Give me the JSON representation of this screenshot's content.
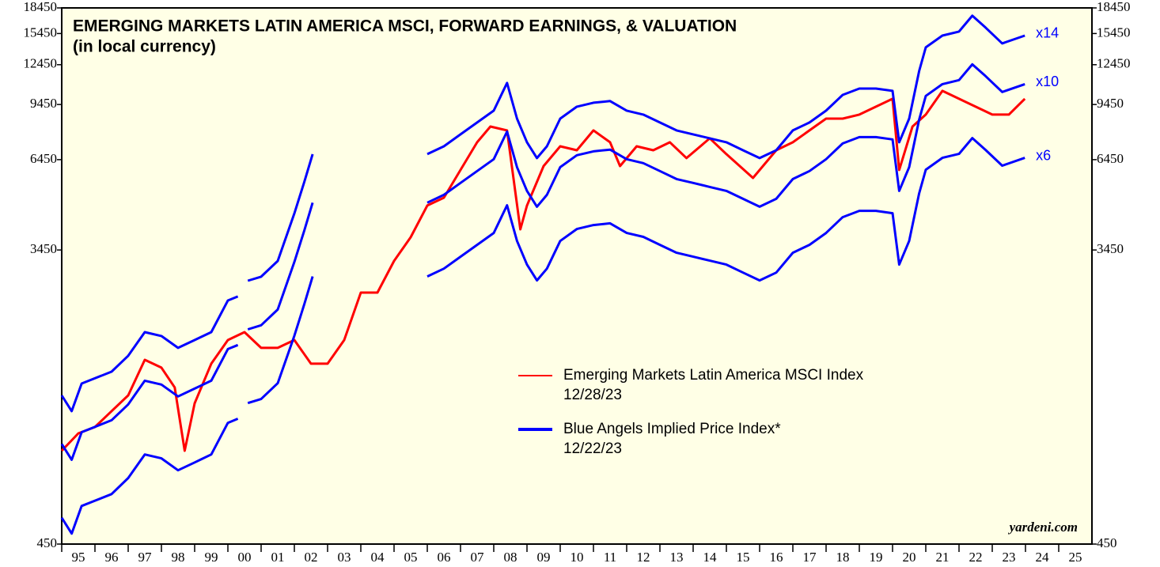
{
  "chart_data": {
    "type": "line",
    "title": "EMERGING MARKETS LATIN AMERICA MSCI, FORWARD EARNINGS, & VALUATION",
    "subtitle": "(in local currency)",
    "source": "yardeni.com",
    "log_scale": true,
    "ylim": [
      450,
      18450
    ],
    "yticks": [
      450,
      3450,
      6450,
      9450,
      12450,
      15450,
      18450
    ],
    "xlim": [
      1995,
      2026
    ],
    "xticks": [
      {
        "value": 1995.5,
        "label": "95"
      },
      {
        "value": 1996.5,
        "label": "96"
      },
      {
        "value": 1997.5,
        "label": "97"
      },
      {
        "value": 1998.5,
        "label": "98"
      },
      {
        "value": 1999.5,
        "label": "99"
      },
      {
        "value": 2000.5,
        "label": "00"
      },
      {
        "value": 2001.5,
        "label": "01"
      },
      {
        "value": 2002.5,
        "label": "02"
      },
      {
        "value": 2003.5,
        "label": "03"
      },
      {
        "value": 2004.5,
        "label": "04"
      },
      {
        "value": 2005.5,
        "label": "05"
      },
      {
        "value": 2006.5,
        "label": "06"
      },
      {
        "value": 2007.5,
        "label": "07"
      },
      {
        "value": 2008.5,
        "label": "08"
      },
      {
        "value": 2009.5,
        "label": "09"
      },
      {
        "value": 2010.5,
        "label": "10"
      },
      {
        "value": 2011.5,
        "label": "11"
      },
      {
        "value": 2012.5,
        "label": "12"
      },
      {
        "value": 2013.5,
        "label": "13"
      },
      {
        "value": 2014.5,
        "label": "14"
      },
      {
        "value": 2015.5,
        "label": "15"
      },
      {
        "value": 2016.5,
        "label": "16"
      },
      {
        "value": 2017.5,
        "label": "17"
      },
      {
        "value": 2018.5,
        "label": "18"
      },
      {
        "value": 2019.5,
        "label": "19"
      },
      {
        "value": 2020.5,
        "label": "20"
      },
      {
        "value": 2021.5,
        "label": "21"
      },
      {
        "value": 2022.5,
        "label": "22"
      },
      {
        "value": 2023.5,
        "label": "23"
      },
      {
        "value": 2024.5,
        "label": "24"
      },
      {
        "value": 2025.5,
        "label": "25"
      }
    ],
    "legend": [
      {
        "label": "Emerging Markets Latin America MSCI Index",
        "date": "12/28/23",
        "color": "#ff0000"
      },
      {
        "label": "Blue Angels Implied Price Index*",
        "date": "12/22/23",
        "color": "#0000ff"
      }
    ],
    "series": [
      {
        "color": "#ff0000",
        "x": [
          1995.0,
          1995.5,
          1996.0,
          1996.5,
          1997.0,
          1997.5,
          1998.0,
          1998.4,
          1998.7,
          1999.0,
          1999.5,
          2000.0,
          2000.5,
          2001.0,
          2001.5,
          2002.0,
          2002.5,
          2003.0,
          2003.5,
          2004.0,
          2004.5,
          2005.0,
          2005.5,
          2006.0,
          2006.5,
          2007.0,
          2007.5,
          2007.9,
          2008.4,
          2008.8,
          2009.0,
          2009.5,
          2010.0,
          2010.5,
          2011.0,
          2011.5,
          2011.8,
          2012.3,
          2012.8,
          2013.3,
          2013.8,
          2014.5,
          2015.0,
          2015.8,
          2016.5,
          2017.0,
          2017.5,
          2018.0,
          2018.5,
          2019.0,
          2019.5,
          2020.0,
          2020.2,
          2020.6,
          2021.0,
          2021.5,
          2022.0,
          2022.5,
          2023.0,
          2023.5,
          2023.98
        ],
        "values": [
          859,
          969,
          1012,
          1130,
          1260,
          1612,
          1527,
          1332,
          859,
          1193,
          1570,
          1849,
          1953,
          1751,
          1751,
          1849,
          1570,
          1570,
          1849,
          2569,
          2569,
          3198,
          3768,
          4694,
          4955,
          6005,
          7275,
          8115,
          7897,
          3981,
          4694,
          6170,
          7075,
          6884,
          7897,
          7275,
          6170,
          7075,
          6884,
          7275,
          6519,
          7476,
          6702,
          5684,
          6884,
          7275,
          7897,
          8571,
          8571,
          8815,
          9308,
          9832,
          6005,
          8115,
          8815,
          10386,
          9832,
          9308,
          8815,
          8815,
          9832
        ]
      },
      {
        "name": "x14",
        "color": "#0000ff",
        "x": [
          1995.0,
          1995.3,
          1995.6,
          1996.5,
          1997.0,
          1997.5,
          1998.0,
          1998.5,
          1999.0,
          1999.5,
          2000.0,
          2000.3,
          2000.4,
          2000.6,
          2001.0,
          2001.5,
          2002.0,
          2002.3,
          2002.55,
          2004,
          2006.0,
          2006.5,
          2007.0,
          2007.5,
          2008.0,
          2008.4,
          2008.7,
          2009.0,
          2009.3,
          2009.6,
          2010.0,
          2010.5,
          2011.0,
          2011.5,
          2012.0,
          2012.5,
          2013.0,
          2013.5,
          2014.0,
          2014.5,
          2015.0,
          2015.5,
          2016.0,
          2016.5,
          2017.0,
          2017.5,
          2018.0,
          2018.5,
          2019.0,
          2019.5,
          2020.0,
          2020.2,
          2020.5,
          2020.8,
          2021.0,
          2021.5,
          2022.0,
          2022.4,
          2022.8,
          2023.3,
          2023.98
        ],
        "values": [
          1260,
          1130,
          1368,
          1485,
          1658,
          1953,
          1901,
          1751,
          1849,
          1953,
          2432,
          2500,
          null,
          2788,
          2867,
          3198,
          4443,
          5531,
          6702,
          null,
          6702,
          7075,
          7686,
          8342,
          9057,
          10969,
          8571,
          7275,
          6519,
          7075,
          8571,
          9308,
          9565,
          9680,
          9057,
          8815,
          8342,
          7897,
          7686,
          7476,
          7275,
          6884,
          6519,
          6884,
          7897,
          8342,
          9057,
          10102,
          10555,
          10555,
          10386,
          7275,
          8571,
          11911,
          14037,
          15235,
          15666,
          17474,
          16100,
          14430,
          15235
        ]
      },
      {
        "name": "x10",
        "color": "#0000ff",
        "x": [
          1995.0,
          1995.3,
          1995.6,
          1996.5,
          1997.0,
          1997.5,
          1998.0,
          1998.5,
          1999.0,
          1999.5,
          2000.0,
          2000.3,
          2000.4,
          2000.6,
          2001.0,
          2001.5,
          2002.0,
          2002.3,
          2002.55,
          2004,
          2006.0,
          2006.5,
          2007.0,
          2007.5,
          2008.0,
          2008.4,
          2008.7,
          2009.0,
          2009.3,
          2009.6,
          2010.0,
          2010.5,
          2011.0,
          2011.5,
          2012.0,
          2012.5,
          2013.0,
          2013.5,
          2014.0,
          2014.5,
          2015.0,
          2015.5,
          2016.0,
          2016.5,
          2017.0,
          2017.5,
          2018.0,
          2018.5,
          2019.0,
          2019.5,
          2020.0,
          2020.2,
          2020.5,
          2020.8,
          2021.0,
          2021.5,
          2022.0,
          2022.4,
          2022.8,
          2023.3,
          2023.98
        ],
        "values": [
          900,
          807,
          977,
          1061,
          1184,
          1395,
          1358,
          1251,
          1321,
          1395,
          1737,
          1786,
          null,
          1991,
          2048,
          2284,
          3174,
          3951,
          4787,
          null,
          4787,
          5054,
          5490,
          5959,
          6469,
          7835,
          6122,
          5196,
          4656,
          5054,
          6122,
          6649,
          6832,
          6914,
          6469,
          6296,
          5959,
          5641,
          5490,
          5340,
          5196,
          4917,
          4656,
          4917,
          5641,
          5959,
          6469,
          7216,
          7539,
          7539,
          7419,
          5196,
          6122,
          8508,
          10026,
          10882,
          11190,
          12481,
          11500,
          10307,
          10882
        ]
      },
      {
        "name": "x6",
        "color": "#0000ff",
        "x": [
          1995.0,
          1995.3,
          1995.6,
          1996.5,
          1997.0,
          1997.5,
          1998.0,
          1998.5,
          1999.0,
          1999.5,
          2000.0,
          2000.3,
          2000.4,
          2000.6,
          2001.0,
          2001.5,
          2002.0,
          2002.3,
          2002.55,
          2004,
          2006.0,
          2006.5,
          2007.0,
          2007.5,
          2008.0,
          2008.4,
          2008.7,
          2009.0,
          2009.3,
          2009.6,
          2010.0,
          2010.5,
          2011.0,
          2011.5,
          2012.0,
          2012.5,
          2013.0,
          2013.5,
          2014.0,
          2014.5,
          2015.0,
          2015.5,
          2016.0,
          2016.5,
          2017.0,
          2017.5,
          2018.0,
          2018.5,
          2019.0,
          2019.5,
          2020.0,
          2020.2,
          2020.5,
          2020.8,
          2021.0,
          2021.5,
          2022.0,
          2022.4,
          2022.8,
          2023.3,
          2023.98
        ],
        "values": [
          540,
          484,
          586,
          636,
          711,
          837,
          815,
          750,
          792,
          837,
          1042,
          1072,
          null,
          1195,
          1229,
          1371,
          1904,
          2371,
          2872,
          null,
          2872,
          3032,
          3294,
          3575,
          3882,
          4701,
          3673,
          3118,
          2794,
          3032,
          3673,
          3989,
          4099,
          4149,
          3882,
          3778,
          3575,
          3385,
          3294,
          3204,
          3118,
          2950,
          2794,
          2950,
          3385,
          3575,
          3882,
          4330,
          4524,
          4524,
          4452,
          3118,
          3673,
          5105,
          6016,
          6530,
          6714,
          7489,
          6900,
          6185,
          6530
        ]
      }
    ]
  }
}
